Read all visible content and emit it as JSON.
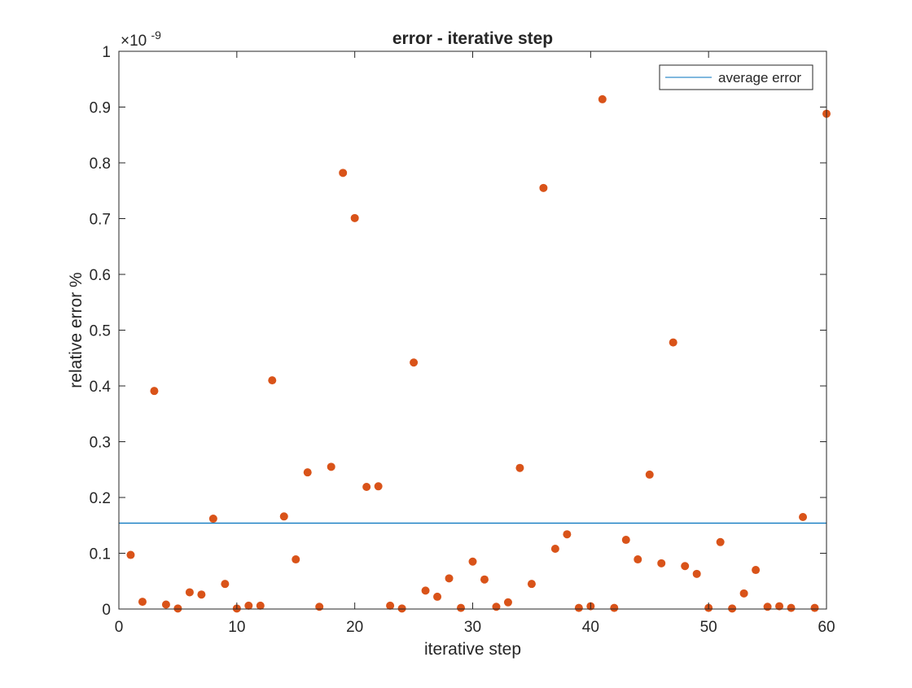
{
  "chart_data": {
    "type": "scatter",
    "title": "error - iterative step",
    "xlabel": "iterative step",
    "ylabel": "relative error %",
    "xlim": [
      0,
      60
    ],
    "ylim": [
      0,
      1
    ],
    "x_ticks": [
      0,
      10,
      20,
      30,
      40,
      50,
      60
    ],
    "y_ticks": [
      0,
      0.1,
      0.2,
      0.3,
      0.4,
      0.5,
      0.6,
      0.7,
      0.8,
      0.9,
      1
    ],
    "x_tick_labels": [
      "0",
      "10",
      "20",
      "30",
      "40",
      "50",
      "60"
    ],
    "y_tick_labels": [
      "0",
      "0.1",
      "0.2",
      "0.3",
      "0.4",
      "0.5",
      "0.6",
      "0.7",
      "0.8",
      "0.9",
      "1"
    ],
    "y_exponent_label": "×10",
    "y_exponent_power": "-9",
    "grid": false,
    "legend": {
      "position": "top-right",
      "entries": [
        "average error"
      ]
    },
    "series": [
      {
        "name": "average error",
        "kind": "line",
        "color": "#0072BD",
        "x": [
          0,
          60
        ],
        "y": [
          0.154,
          0.154
        ]
      },
      {
        "kind": "scatter",
        "color": "#D95319",
        "x": [
          1,
          2,
          3,
          4,
          5,
          6,
          7,
          8,
          9,
          10,
          11,
          12,
          13,
          14,
          15,
          16,
          17,
          18,
          19,
          20,
          21,
          22,
          23,
          24,
          25,
          26,
          27,
          28,
          29,
          30,
          31,
          32,
          33,
          34,
          35,
          36,
          37,
          38,
          39,
          40,
          41,
          42,
          43,
          44,
          45,
          46,
          47,
          48,
          49,
          50,
          51,
          52,
          53,
          54,
          55,
          56,
          57,
          58,
          59,
          60
        ],
        "y": [
          0.097,
          0.013,
          0.391,
          0.008,
          0.001,
          0.03,
          0.026,
          0.162,
          0.045,
          0.001,
          0.006,
          0.006,
          0.41,
          0.166,
          0.089,
          0.245,
          0.004,
          0.255,
          0.782,
          0.701,
          0.219,
          0.22,
          0.006,
          0.001,
          0.442,
          0.033,
          0.022,
          0.055,
          0.002,
          0.085,
          0.053,
          0.004,
          0.012,
          0.253,
          0.045,
          0.755,
          0.108,
          0.134,
          0.002,
          0.005,
          0.914,
          0.002,
          0.124,
          0.089,
          0.241,
          0.082,
          0.478,
          0.077,
          0.063,
          0.002,
          0.12,
          0.001,
          0.028,
          0.07,
          0.004,
          0.005,
          0.002,
          0.165,
          0.002,
          0.888
        ]
      }
    ]
  }
}
